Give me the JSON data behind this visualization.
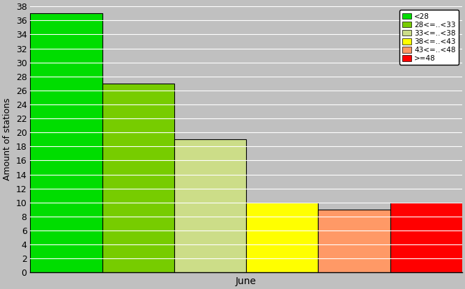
{
  "bars": [
    {
      "value": 37,
      "color": "#00dd00",
      "label": "<28"
    },
    {
      "value": 27,
      "color": "#77cc00",
      "label": "28<=..<33"
    },
    {
      "value": 19,
      "color": "#ccdd88",
      "label": "33<=..<38"
    },
    {
      "value": 10,
      "color": "#ffff00",
      "label": "38<=..<43"
    },
    {
      "value": 9,
      "color": "#ff9966",
      "label": "43<=..<48"
    },
    {
      "value": 10,
      "color": "#ff0000",
      "label": ">=48"
    }
  ],
  "xlabel": "June",
  "ylabel": "Amount of stations",
  "ylim": [
    0,
    38
  ],
  "yticks": [
    0,
    2,
    4,
    6,
    8,
    10,
    12,
    14,
    16,
    18,
    20,
    22,
    24,
    26,
    28,
    30,
    32,
    34,
    36,
    38
  ],
  "background_color": "#c0c0c0",
  "legend_colors": [
    "#00dd00",
    "#77cc00",
    "#ccdd88",
    "#ffff00",
    "#ff9966",
    "#ff0000"
  ],
  "legend_labels": [
    "<28",
    "28<=..<33",
    "33<=..<38",
    "38<=..<43",
    "43<=..<48",
    ">=48"
  ],
  "bar_edge_color": "#000000",
  "figsize": [
    6.67,
    4.15
  ],
  "dpi": 100
}
